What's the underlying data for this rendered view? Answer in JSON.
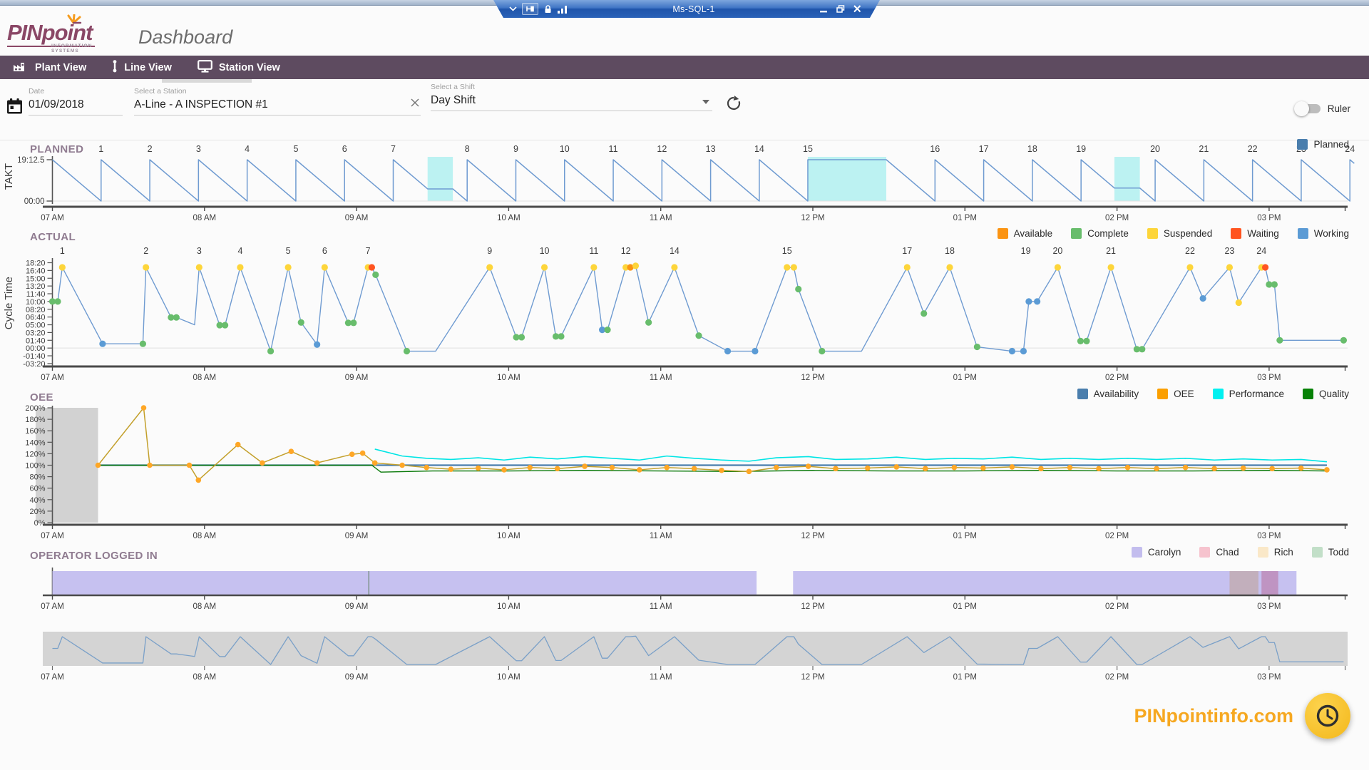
{
  "window": {
    "title": "Ms-SQL-1"
  },
  "header": {
    "logo_text": "PINpoint",
    "logo_sub": "INFORMATION SYSTEMS",
    "title": "Dashboard"
  },
  "nav": {
    "items": [
      {
        "label": "Plant View"
      },
      {
        "label": "Line View"
      },
      {
        "label": "Station View"
      }
    ],
    "active_index": 2
  },
  "filters": {
    "date": {
      "label": "Date",
      "value": "01/09/2018"
    },
    "station": {
      "label": "Select a Station",
      "value": "A-Line - A INSPECTION #1"
    },
    "shift": {
      "label": "Select a Shift",
      "value": "Day Shift"
    },
    "ruler_label": "Ruler"
  },
  "footer": {
    "site": "PINpointinfo.com"
  },
  "colors": {
    "nav_bg": "#5e4b60",
    "section_title": "#8f7b90",
    "chart_line_blue": "#6f9bd1",
    "break_highlight": "#b5f1f1",
    "axis_dark": "#4a4a4a",
    "footer_orange": "#f6a821"
  },
  "chart_data": [
    {
      "name": "planned",
      "type": "line",
      "title": "PLANNED",
      "ylabel": "TAKT",
      "y_ticks": [
        "19:12.5",
        "00:00"
      ],
      "takt": "19:12.5",
      "takt_seconds": 1152.5,
      "time_start": 7.0,
      "time_end": 15.56,
      "x_labels": [
        "07 AM",
        "08 AM",
        "09 AM",
        "10 AM",
        "11 AM",
        "12 PM",
        "01 PM",
        "02 PM",
        "03 PM"
      ],
      "breaks": [
        [
          9.467,
          9.633
        ],
        [
          11.967,
          12.483
        ],
        [
          13.983,
          14.15
        ]
      ],
      "cycle_count": 24,
      "legend": [
        {
          "label": "Planned",
          "color": "#4a7ead"
        }
      ],
      "line_color": "#6f9bd1",
      "break_color": "#b5f1f1"
    },
    {
      "name": "actual",
      "type": "line",
      "title": "ACTUAL",
      "ylabel": "Cycle Time",
      "y_ticks": [
        [
          "18:20",
          1100
        ],
        [
          "16:40",
          1000
        ],
        [
          "15:00",
          900
        ],
        [
          "13:20",
          800
        ],
        [
          "11:40",
          700
        ],
        [
          "10:00",
          600
        ],
        [
          "08:20",
          500
        ],
        [
          "06:40",
          400
        ],
        [
          "05:00",
          300
        ],
        [
          "03:20",
          200
        ],
        [
          "01:40",
          100
        ],
        [
          "00:00",
          0
        ],
        [
          "-01:40",
          -100
        ],
        [
          "-03:20",
          -200
        ]
      ],
      "x_labels": [
        "07 AM",
        "08 AM",
        "09 AM",
        "10 AM",
        "11 AM",
        "12 PM",
        "01 PM",
        "02 PM",
        "03 PM"
      ],
      "legend": [
        {
          "label": "Available",
          "color": "#fb9412"
        },
        {
          "label": "Complete",
          "color": "#68bd6c"
        },
        {
          "label": "Suspended",
          "color": "#fdd53a"
        },
        {
          "label": "Waiting",
          "color": "#ff5420"
        },
        {
          "label": "Working",
          "color": "#5b9bd5"
        }
      ],
      "marker_colors": {
        "a": "#fb9412",
        "c": "#68bd6c",
        "s": "#fdd53a",
        "w": "#ff5420",
        "k": "#5b9bd5"
      },
      "line_color": "#6f9bd1",
      "cycle_labels": [
        [
          1,
          7.065
        ],
        [
          2,
          7.615
        ],
        [
          3,
          7.965
        ],
        [
          4,
          8.235
        ],
        [
          5,
          8.55
        ],
        [
          6,
          8.79
        ],
        [
          7,
          9.075
        ],
        [
          9,
          9.875
        ],
        [
          10,
          10.235
        ],
        [
          11,
          10.56
        ],
        [
          12,
          10.77
        ],
        [
          14,
          11.09
        ],
        [
          15,
          11.83
        ],
        [
          17,
          12.62
        ],
        [
          18,
          12.9
        ],
        [
          19,
          13.4
        ],
        [
          20,
          13.61
        ],
        [
          21,
          13.96
        ],
        [
          22,
          14.48
        ],
        [
          23,
          14.74
        ],
        [
          24,
          14.95
        ]
      ],
      "points": [
        [
          7.0,
          600,
          "c"
        ],
        [
          7.035,
          600,
          "c"
        ],
        [
          7.065,
          1040,
          "s"
        ],
        [
          7.33,
          55,
          "k"
        ],
        [
          7.595,
          55,
          "c"
        ],
        [
          7.615,
          1040,
          "s"
        ],
        [
          7.78,
          395,
          "c"
        ],
        [
          7.815,
          395,
          "c"
        ],
        [
          7.935,
          300,
          null
        ],
        [
          7.965,
          1040,
          "s"
        ],
        [
          8.1,
          295,
          "c"
        ],
        [
          8.135,
          295,
          "c"
        ],
        [
          8.235,
          1040,
          "s"
        ],
        [
          8.435,
          -40,
          "c"
        ],
        [
          8.55,
          1040,
          "s"
        ],
        [
          8.635,
          330,
          "c"
        ],
        [
          8.74,
          45,
          "k"
        ],
        [
          8.79,
          1040,
          "s"
        ],
        [
          8.945,
          325,
          "c"
        ],
        [
          8.98,
          325,
          "c"
        ],
        [
          9.075,
          1040,
          "s"
        ],
        [
          9.1,
          1040,
          "w"
        ],
        [
          9.125,
          945,
          "c"
        ],
        [
          9.33,
          -40,
          "c"
        ],
        [
          9.52,
          -40,
          null
        ],
        [
          9.875,
          1040,
          "s"
        ],
        [
          10.05,
          140,
          "c"
        ],
        [
          10.085,
          140,
          "c"
        ],
        [
          10.235,
          1040,
          "s"
        ],
        [
          10.31,
          150,
          "c"
        ],
        [
          10.345,
          150,
          "c"
        ],
        [
          10.56,
          1040,
          "s"
        ],
        [
          10.615,
          235,
          "k"
        ],
        [
          10.65,
          235,
          "c"
        ],
        [
          10.77,
          1040,
          "s"
        ],
        [
          10.8,
          1040,
          "a"
        ],
        [
          10.835,
          1060,
          "s"
        ],
        [
          10.92,
          330,
          "c"
        ],
        [
          11.09,
          1040,
          "s"
        ],
        [
          11.25,
          160,
          "c"
        ],
        [
          11.44,
          -40,
          "k"
        ],
        [
          11.62,
          -40,
          "k"
        ],
        [
          11.83,
          1040,
          "s"
        ],
        [
          11.875,
          1040,
          "s"
        ],
        [
          11.905,
          760,
          "c"
        ],
        [
          12.06,
          -40,
          "c"
        ],
        [
          12.32,
          -40,
          null
        ],
        [
          12.62,
          1040,
          "s"
        ],
        [
          12.73,
          445,
          "c"
        ],
        [
          12.9,
          1040,
          "s"
        ],
        [
          13.08,
          15,
          "c"
        ],
        [
          13.31,
          -40,
          "k"
        ],
        [
          13.385,
          -40,
          "k"
        ],
        [
          13.42,
          600,
          "k"
        ],
        [
          13.475,
          600,
          "k"
        ],
        [
          13.61,
          1040,
          "s"
        ],
        [
          13.76,
          90,
          "c"
        ],
        [
          13.8,
          90,
          "c"
        ],
        [
          13.96,
          1040,
          "s"
        ],
        [
          14.13,
          -15,
          "c"
        ],
        [
          14.165,
          -15,
          "c"
        ],
        [
          14.48,
          1040,
          "s"
        ],
        [
          14.565,
          640,
          "k"
        ],
        [
          14.74,
          1040,
          "s"
        ],
        [
          14.8,
          585,
          "s"
        ],
        [
          14.95,
          1040,
          "s"
        ],
        [
          14.975,
          1040,
          "w"
        ],
        [
          15.0,
          820,
          "c"
        ],
        [
          15.035,
          820,
          "c"
        ],
        [
          15.07,
          100,
          "c"
        ],
        [
          15.32,
          100,
          null
        ],
        [
          15.49,
          100,
          "c"
        ]
      ]
    },
    {
      "name": "oee",
      "type": "line",
      "title": "OEE",
      "y_ticks": [
        "200%",
        "180%",
        "160%",
        "140%",
        "120%",
        "100%",
        "80%",
        "60%",
        "40%",
        "20%",
        "0%"
      ],
      "x_labels": [
        "07 AM",
        "08 AM",
        "09 AM",
        "10 AM",
        "11 AM",
        "12 PM",
        "01 PM",
        "02 PM",
        "03 PM"
      ],
      "legend": [
        {
          "label": "Availability",
          "color": "#4a7ead"
        },
        {
          "label": "OEE",
          "color": "#fb9f00"
        },
        {
          "label": "Performance",
          "color": "#00f0f0"
        },
        {
          "label": "Quality",
          "color": "#078207"
        }
      ],
      "no_data_region": [
        7.0,
        7.3
      ],
      "series": [
        {
          "name": "Availability",
          "color": "#4a7ead",
          "width": 2.2,
          "points": [
            [
              7.3,
              100
            ],
            [
              15.38,
              100
            ]
          ]
        },
        {
          "name": "Quality",
          "color": "#0a7a0a",
          "width": 1.4,
          "points": [
            [
              7.3,
              100
            ],
            [
              9.1,
              100
            ],
            [
              9.16,
              88
            ],
            [
              9.5,
              90
            ],
            [
              10.0,
              90
            ],
            [
              10.5,
              91
            ],
            [
              11.0,
              90
            ],
            [
              11.5,
              89
            ],
            [
              12.0,
              91
            ],
            [
              12.5,
              90
            ],
            [
              13.0,
              90
            ],
            [
              13.5,
              91
            ],
            [
              14.0,
              90
            ],
            [
              14.5,
              90
            ],
            [
              15.0,
              91
            ],
            [
              15.38,
              90
            ]
          ]
        },
        {
          "name": "Performance",
          "color": "#00e5e5",
          "width": 1.6,
          "points": [
            [
              9.12,
              128
            ],
            [
              9.3,
              116
            ],
            [
              9.46,
              112
            ],
            [
              9.62,
              110
            ],
            [
              9.8,
              113
            ],
            [
              9.97,
              109
            ],
            [
              10.14,
              114
            ],
            [
              10.32,
              111
            ],
            [
              10.5,
              115
            ],
            [
              10.68,
              112
            ],
            [
              10.86,
              109
            ],
            [
              11.04,
              116
            ],
            [
              11.22,
              112
            ],
            [
              11.4,
              109
            ],
            [
              11.58,
              107
            ],
            [
              11.76,
              113
            ],
            [
              11.97,
              115
            ],
            [
              12.15,
              110
            ],
            [
              12.36,
              111
            ],
            [
              12.55,
              114
            ],
            [
              12.74,
              110
            ],
            [
              12.93,
              112
            ],
            [
              13.12,
              111
            ],
            [
              13.31,
              114
            ],
            [
              13.5,
              110
            ],
            [
              13.69,
              112
            ],
            [
              13.88,
              110
            ],
            [
              14.07,
              112
            ],
            [
              14.26,
              110
            ],
            [
              14.45,
              112
            ],
            [
              14.64,
              109
            ],
            [
              14.83,
              111
            ],
            [
              15.02,
              109
            ],
            [
              15.21,
              110
            ],
            [
              15.38,
              106
            ]
          ]
        },
        {
          "name": "OEE",
          "color": "#c3a02c",
          "width": 1.5,
          "dot_color": "#ffa726",
          "points": [
            [
              7.3,
              100
            ],
            [
              7.6,
              200
            ],
            [
              7.64,
              100
            ],
            [
              7.9,
              100
            ],
            [
              7.96,
              74
            ],
            [
              8.22,
              136
            ],
            [
              8.38,
              104
            ],
            [
              8.57,
              124
            ],
            [
              8.74,
              104
            ],
            [
              8.97,
              119
            ],
            [
              9.04,
              121
            ],
            [
              9.12,
              104
            ],
            [
              9.3,
              100
            ],
            [
              9.46,
              96
            ],
            [
              9.62,
              93
            ],
            [
              9.8,
              95
            ],
            [
              9.97,
              92
            ],
            [
              10.14,
              96
            ],
            [
              10.32,
              94
            ],
            [
              10.5,
              98
            ],
            [
              10.68,
              96
            ],
            [
              10.86,
              92
            ],
            [
              11.04,
              96
            ],
            [
              11.22,
              94
            ],
            [
              11.4,
              91
            ],
            [
              11.58,
              89
            ],
            [
              11.76,
              96
            ],
            [
              11.97,
              98
            ],
            [
              12.15,
              94
            ],
            [
              12.36,
              95
            ],
            [
              12.55,
              97
            ],
            [
              12.74,
              94
            ],
            [
              12.93,
              96
            ],
            [
              13.12,
              95
            ],
            [
              13.31,
              97
            ],
            [
              13.5,
              94
            ],
            [
              13.69,
              96
            ],
            [
              13.88,
              94
            ],
            [
              14.07,
              96
            ],
            [
              14.26,
              94
            ],
            [
              14.45,
              96
            ],
            [
              14.64,
              94
            ],
            [
              14.83,
              95
            ],
            [
              15.02,
              94
            ],
            [
              15.21,
              95
            ],
            [
              15.38,
              92
            ]
          ]
        }
      ]
    },
    {
      "name": "operator",
      "type": "timeline",
      "title": "OPERATOR LOGGED IN",
      "x_labels": [
        "07 AM",
        "08 AM",
        "09 AM",
        "10 AM",
        "11 AM",
        "12 PM",
        "01 PM",
        "02 PM",
        "03 PM"
      ],
      "legend": [
        {
          "label": "Carolyn",
          "color": "#c3bdee"
        },
        {
          "label": "Chad",
          "color": "#f6c3ce"
        },
        {
          "label": "Rich",
          "color": "#fae8c8"
        },
        {
          "label": "Todd",
          "color": "#c2dfc8"
        }
      ],
      "operators": [
        {
          "name": "Carolyn",
          "color": "#c6c1f0",
          "segments": [
            [
              7.0,
              11.63
            ],
            [
              11.87,
              15.18
            ]
          ],
          "overlay": false
        },
        {
          "name": "Rich",
          "color": "#fae8c8",
          "segments": [
            [
              14.74,
              14.93
            ]
          ],
          "overlay": true
        },
        {
          "name": "Chad",
          "color": "#f6c3ce",
          "segments": [
            [
              14.95,
              15.06
            ]
          ],
          "overlay": true
        },
        {
          "name": "Todd",
          "color": "#c2dfc8",
          "segments": [],
          "overlay": true
        }
      ],
      "divider_time": 9.08
    },
    {
      "name": "overview",
      "type": "line",
      "title": "",
      "x_labels": [
        "07 AM",
        "08 AM",
        "09 AM",
        "10 AM",
        "11 AM",
        "12 PM",
        "01 PM",
        "02 PM",
        "03 PM"
      ],
      "band_color": "#d4d4d4",
      "line_color": "#7aa0c8",
      "source_series": "actual"
    }
  ]
}
